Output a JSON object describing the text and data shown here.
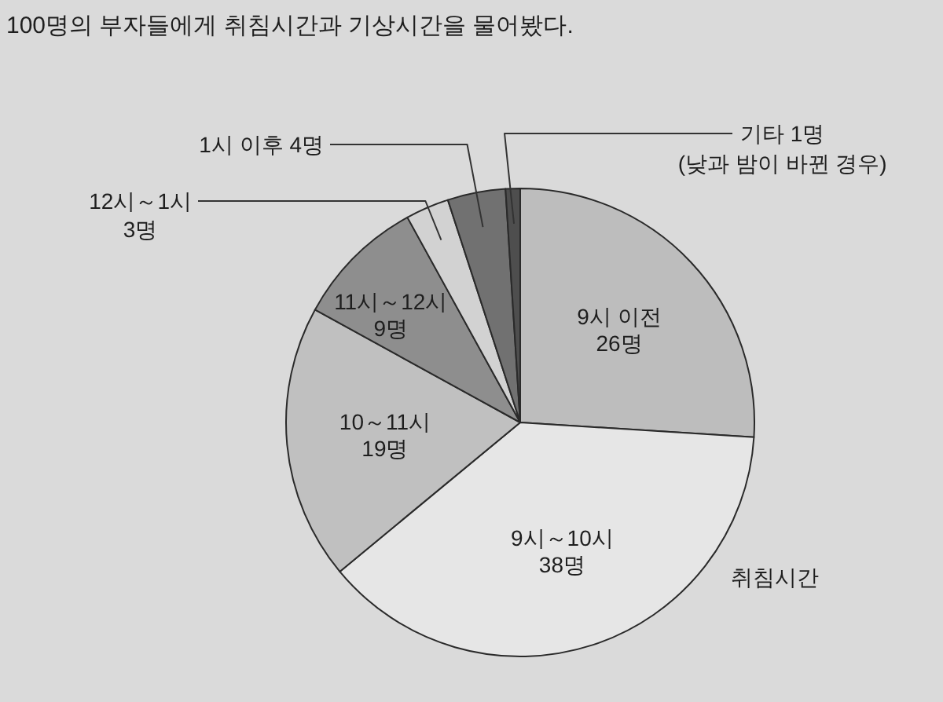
{
  "chart_data": {
    "type": "pie",
    "title": "100명의 부자들에게 취침시간과 기상시간을 물어봤다.",
    "categories": [
      "9시 이전",
      "9시～10시",
      "10～11시",
      "11시～12시",
      "12시～1시",
      "1시 이후",
      "기타"
    ],
    "values": [
      26,
      38,
      19,
      9,
      3,
      4,
      1
    ],
    "value_labels": [
      "26명",
      "38명",
      "19명",
      "9명",
      "3명",
      "4명",
      "1명"
    ],
    "colors": [
      "#bdbdbd",
      "#e6e6e6",
      "#c0c0c0",
      "#8e8e8e",
      "#d2d2d2",
      "#717171",
      "#4e4e4e"
    ],
    "annotations": [
      {
        "text": "(낮과 밤이 바뀐 경우)",
        "x": "기타"
      },
      "취침시간"
    ]
  }
}
